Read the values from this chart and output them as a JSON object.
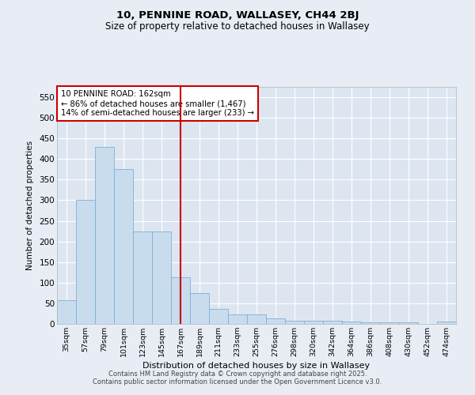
{
  "title": "10, PENNINE ROAD, WALLASEY, CH44 2BJ",
  "subtitle": "Size of property relative to detached houses in Wallasey",
  "xlabel": "Distribution of detached houses by size in Wallasey",
  "ylabel": "Number of detached properties",
  "bar_color": "#c9dcee",
  "bar_edge_color": "#7bafd4",
  "background_color": "#dde6f0",
  "grid_color": "#ffffff",
  "vline_color": "#cc0000",
  "vline_x": 6,
  "annotation_text": "10 PENNINE ROAD: 162sqm\n← 86% of detached houses are smaller (1,467)\n14% of semi-detached houses are larger (233) →",
  "categories": [
    "35sqm",
    "57sqm",
    "79sqm",
    "101sqm",
    "123sqm",
    "145sqm",
    "167sqm",
    "189sqm",
    "211sqm",
    "233sqm",
    "255sqm",
    "276sqm",
    "298sqm",
    "320sqm",
    "342sqm",
    "364sqm",
    "386sqm",
    "408sqm",
    "430sqm",
    "452sqm",
    "474sqm"
  ],
  "values": [
    57,
    300,
    430,
    375,
    225,
    225,
    113,
    75,
    37,
    23,
    23,
    13,
    8,
    8,
    8,
    5,
    3,
    3,
    3,
    0,
    5
  ],
  "ylim": [
    0,
    575
  ],
  "yticks": [
    0,
    50,
    100,
    150,
    200,
    250,
    300,
    350,
    400,
    450,
    500,
    550
  ],
  "fig_bg": "#e8edf5",
  "footer1": "Contains HM Land Registry data © Crown copyright and database right 2025.",
  "footer2": "Contains public sector information licensed under the Open Government Licence v3.0.",
  "title_fontsize": 9.5,
  "subtitle_fontsize": 8.5
}
